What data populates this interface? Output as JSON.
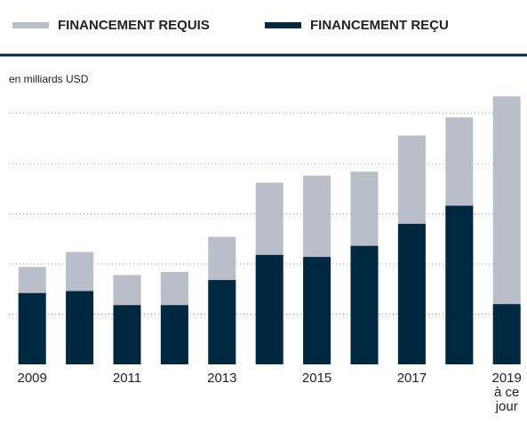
{
  "chart_data": {
    "type": "bar",
    "subtitle": "en milliards USD",
    "categories": [
      "2009",
      null,
      "2011",
      null,
      "2013",
      null,
      "2015",
      null,
      "2017",
      null,
      "2019 à ce jour"
    ],
    "series": [
      {
        "name": "FINANCEMENT REQUIS",
        "color": "#b9bec8",
        "values": [
          9.7,
          11.2,
          8.9,
          9.2,
          12.7,
          18.1,
          18.8,
          19.2,
          22.8,
          24.6,
          26.7
        ]
      },
      {
        "name": "FINANCEMENT REÇU",
        "color": "#002841",
        "values": [
          7.1,
          7.3,
          5.9,
          5.9,
          8.4,
          10.9,
          10.7,
          11.8,
          14.0,
          15.8,
          6.0
        ]
      }
    ],
    "ylim": [
      0,
      27
    ],
    "yticks": [
      0,
      5,
      10,
      15,
      20,
      25
    ],
    "grid": true
  }
}
